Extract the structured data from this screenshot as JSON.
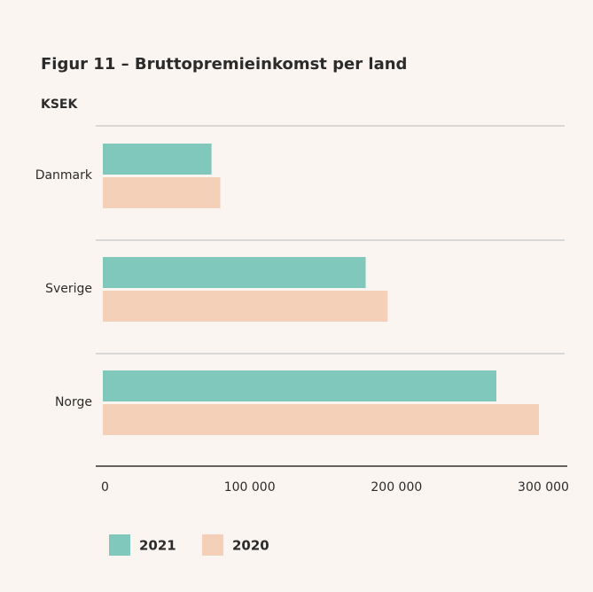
{
  "chart_data": {
    "type": "hbar",
    "title": "Figur 11 – Bruttopremieinkomst per land",
    "unit_label": "KSEK",
    "categories": [
      "Danmark",
      "Sverige",
      "Norge"
    ],
    "series": [
      {
        "name": "2021",
        "color": "#80c8bc",
        "values": [
          74000,
          179000,
          268000
        ]
      },
      {
        "name": "2020",
        "color": "#f4d0b9",
        "values": [
          80000,
          194000,
          297000
        ]
      }
    ],
    "xlim": [
      0,
      300000
    ],
    "xticks": [
      0,
      {
        "value": 100000,
        "label": "100 000"
      },
      {
        "value": 200000,
        "label": "200 000"
      },
      {
        "value": 300000,
        "label": "300 000"
      }
    ]
  }
}
